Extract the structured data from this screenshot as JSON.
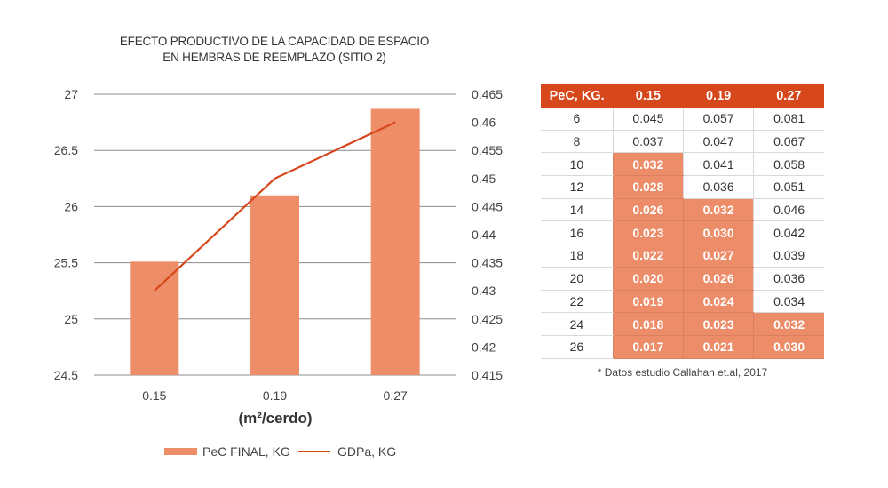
{
  "chart_data": {
    "type": "bar",
    "title": [
      "EFECTO PRODUCTIVO DE LA CAPACIDAD DE ESPACIO",
      "EN HEMBRAS DE REEMPLAZO (SITIO 2)"
    ],
    "xlabel": "(m²/cerdo)",
    "categories": [
      "0.15",
      "0.19",
      "0.27"
    ],
    "left_axis": {
      "ylim": [
        24.5,
        27
      ],
      "ticks": [
        "24.5",
        "25",
        "25.5",
        "26",
        "26.5",
        "27"
      ],
      "tick_values": [
        24.5,
        25,
        25.5,
        26,
        26.5,
        27
      ]
    },
    "right_axis": {
      "ylim": [
        0.415,
        0.465
      ],
      "ticks": [
        "0.415",
        "0.42",
        "0.425",
        "0.43",
        "0.435",
        "0.44",
        "0.445",
        "0.45",
        "0.455",
        "0.46",
        "0.465"
      ],
      "tick_values": [
        0.415,
        0.42,
        0.425,
        0.43,
        0.435,
        0.44,
        0.445,
        0.45,
        0.455,
        0.46,
        0.465
      ]
    },
    "series": [
      {
        "name": "PeC FINAL, KG",
        "type": "bar",
        "axis": "left",
        "values": [
          25.51,
          26.1,
          26.87
        ],
        "color": "#ee8e68"
      },
      {
        "name": "GDPa, KG",
        "type": "line",
        "axis": "right",
        "values": [
          0.43,
          0.45,
          0.46
        ],
        "color": "#d6481c"
      }
    ],
    "grid": true,
    "legend_position": "bottom-center"
  },
  "table": {
    "headers": [
      "PeC, KG.",
      "0.15",
      "0.19",
      "0.27"
    ],
    "header_color": "#d6481c",
    "highlight_color": "#ec8c68",
    "rows": [
      {
        "pec": "6",
        "cells": [
          {
            "v": "0.045",
            "hl": false
          },
          {
            "v": "0.057",
            "hl": false
          },
          {
            "v": "0.081",
            "hl": false
          }
        ]
      },
      {
        "pec": "8",
        "cells": [
          {
            "v": "0.037",
            "hl": false
          },
          {
            "v": "0.047",
            "hl": false
          },
          {
            "v": "0.067",
            "hl": false
          }
        ]
      },
      {
        "pec": "10",
        "cells": [
          {
            "v": "0.032",
            "hl": true
          },
          {
            "v": "0.041",
            "hl": false
          },
          {
            "v": "0.058",
            "hl": false
          }
        ]
      },
      {
        "pec": "12",
        "cells": [
          {
            "v": "0.028",
            "hl": true
          },
          {
            "v": "0.036",
            "hl": false
          },
          {
            "v": "0.051",
            "hl": false
          }
        ]
      },
      {
        "pec": "14",
        "cells": [
          {
            "v": "0.026",
            "hl": true
          },
          {
            "v": "0.032",
            "hl": true
          },
          {
            "v": "0.046",
            "hl": false
          }
        ]
      },
      {
        "pec": "16",
        "cells": [
          {
            "v": "0.023",
            "hl": true
          },
          {
            "v": "0.030",
            "hl": true
          },
          {
            "v": "0.042",
            "hl": false
          }
        ]
      },
      {
        "pec": "18",
        "cells": [
          {
            "v": "0.022",
            "hl": true
          },
          {
            "v": "0.027",
            "hl": true
          },
          {
            "v": "0.039",
            "hl": false
          }
        ]
      },
      {
        "pec": "20",
        "cells": [
          {
            "v": "0.020",
            "hl": true
          },
          {
            "v": "0.026",
            "hl": true
          },
          {
            "v": "0.036",
            "hl": false
          }
        ]
      },
      {
        "pec": "22",
        "cells": [
          {
            "v": "0.019",
            "hl": true
          },
          {
            "v": "0.024",
            "hl": true
          },
          {
            "v": "0.034",
            "hl": false
          }
        ]
      },
      {
        "pec": "24",
        "cells": [
          {
            "v": "0.018",
            "hl": true
          },
          {
            "v": "0.023",
            "hl": true
          },
          {
            "v": "0.032",
            "hl": true
          }
        ]
      },
      {
        "pec": "26",
        "cells": [
          {
            "v": "0.017",
            "hl": true
          },
          {
            "v": "0.021",
            "hl": true
          },
          {
            "v": "0.030",
            "hl": true
          }
        ]
      }
    ],
    "footnote": "* Datos estudio Callahan et.al, 2017"
  }
}
